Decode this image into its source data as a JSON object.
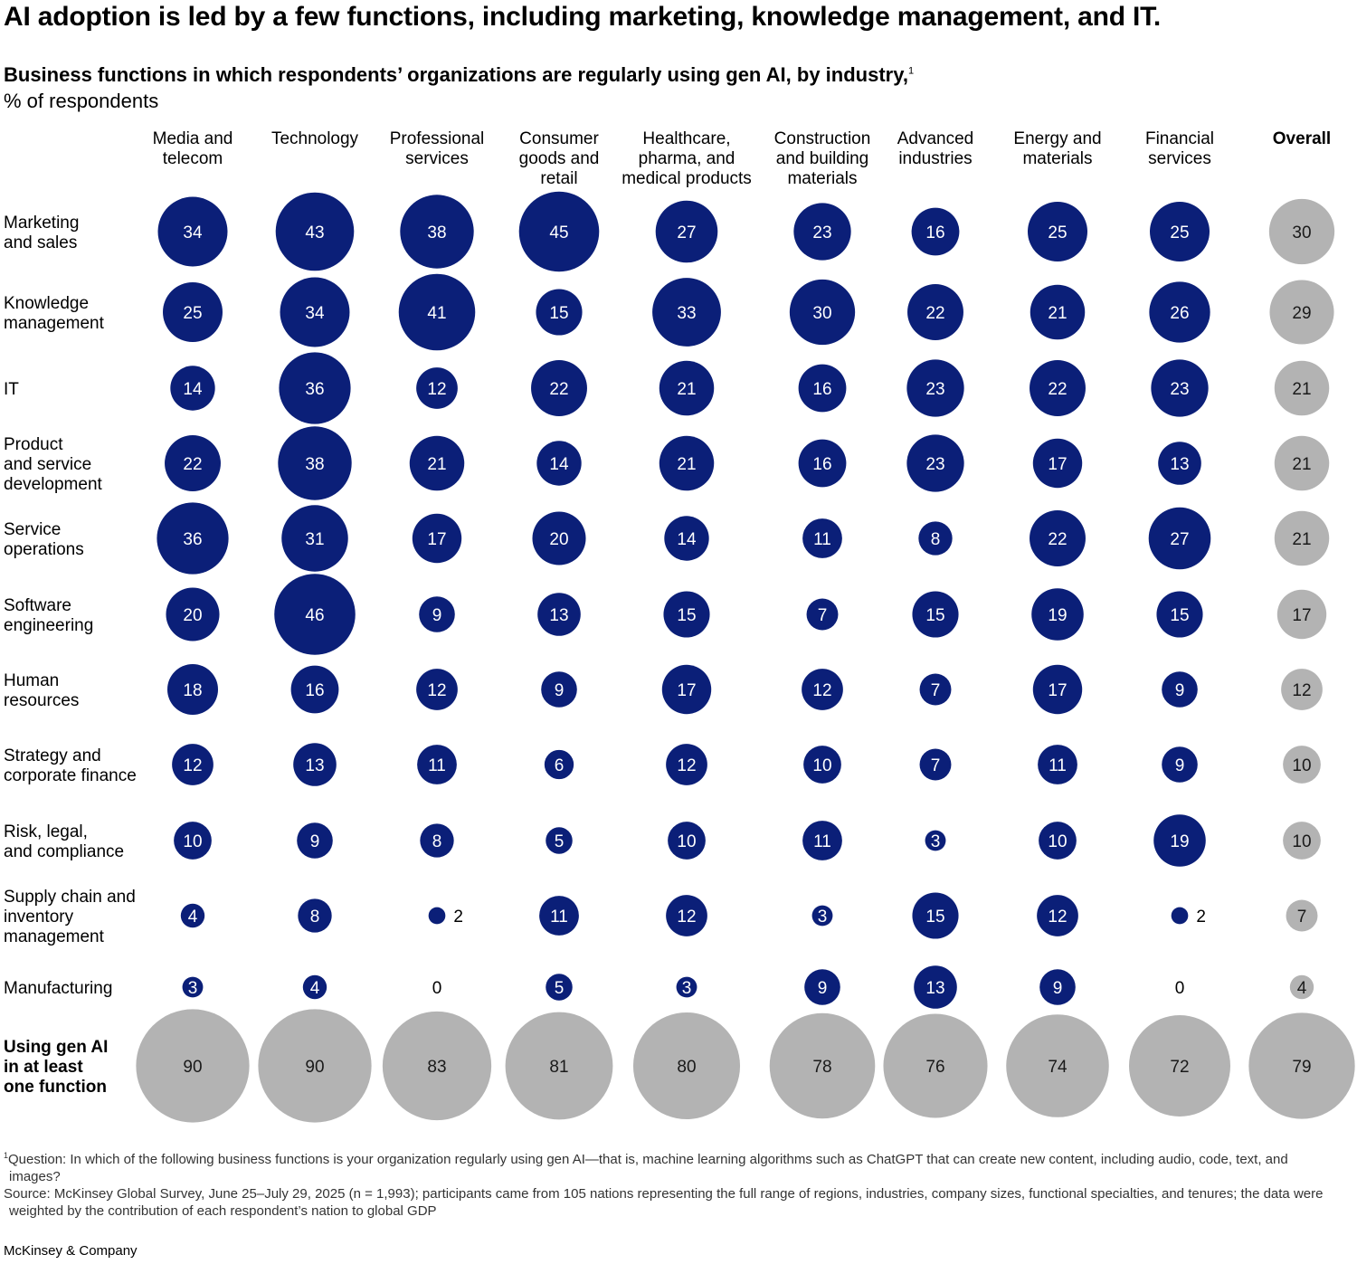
{
  "title": "AI adoption is led by a few functions, including marketing, knowledge management, and IT.",
  "subtitle": "Business functions in which respondents’ organizations are regularly using gen AI, by industry,",
  "subtitle_footnote_marker": "1",
  "unit_label": "% of respondents",
  "footnote": {
    "marker": "1",
    "question": "Question: In which of the following business functions is your organization regularly using gen AI—that is, machine learning algorithms such as ChatGPT that can create new content, including audio, code, text, and images?",
    "source": "Source: McKinsey Global Survey, June 25–July 29, 2025 (n = 1,993); participants came from 105 nations representing the full range of regions, industries, company sizes, functional specialties, and tenures; the data were weighted by the contribution of each respondent’s nation to global GDP"
  },
  "logo": "McKinsey & Company",
  "colors": {
    "industry": "#0b1f78",
    "overall": "#b3b3b3",
    "industry_text": "#ffffff",
    "overall_text": "#1a1a1a"
  },
  "chart_data": {
    "type": "bubble-matrix",
    "columns": [
      [
        "Media and",
        "telecom"
      ],
      [
        "Technology"
      ],
      [
        "Professional",
        "services"
      ],
      [
        "Consumer",
        "goods and",
        "retail"
      ],
      [
        "Healthcare,",
        "pharma, and",
        "medical products"
      ],
      [
        "Construction",
        "and building",
        "materials"
      ],
      [
        "Advanced",
        "industries"
      ],
      [
        "Energy and",
        "materials"
      ],
      [
        "Financial",
        "services"
      ],
      [
        "Overall"
      ]
    ],
    "rows": [
      {
        "label": [
          "Marketing",
          "and sales"
        ],
        "values": [
          34,
          43,
          38,
          45,
          27,
          23,
          16,
          25,
          25,
          30
        ]
      },
      {
        "label": [
          "Knowledge",
          "management"
        ],
        "values": [
          25,
          34,
          41,
          15,
          33,
          30,
          22,
          21,
          26,
          29
        ]
      },
      {
        "label": [
          "IT"
        ],
        "values": [
          14,
          36,
          12,
          22,
          21,
          16,
          23,
          22,
          23,
          21
        ]
      },
      {
        "label": [
          "Product",
          "and service",
          "development"
        ],
        "values": [
          22,
          38,
          21,
          14,
          21,
          16,
          23,
          17,
          13,
          21
        ]
      },
      {
        "label": [
          "Service",
          "operations"
        ],
        "values": [
          36,
          31,
          17,
          20,
          14,
          11,
          8,
          22,
          27,
          21
        ]
      },
      {
        "label": [
          "Software",
          "engineering"
        ],
        "values": [
          20,
          46,
          9,
          13,
          15,
          7,
          15,
          19,
          15,
          17
        ]
      },
      {
        "label": [
          "Human",
          "resources"
        ],
        "values": [
          18,
          16,
          12,
          9,
          17,
          12,
          7,
          17,
          9,
          12
        ]
      },
      {
        "label": [
          "Strategy and",
          "corporate finance"
        ],
        "values": [
          12,
          13,
          11,
          6,
          12,
          10,
          7,
          11,
          9,
          10
        ]
      },
      {
        "label": [
          "Risk, legal,",
          "and compliance"
        ],
        "values": [
          10,
          9,
          8,
          5,
          10,
          11,
          3,
          10,
          19,
          10
        ]
      },
      {
        "label": [
          "Supply chain and",
          "inventory",
          "management"
        ],
        "values": [
          4,
          8,
          2,
          11,
          12,
          3,
          15,
          12,
          2,
          7
        ]
      },
      {
        "label": [
          "Manufacturing"
        ],
        "values": [
          3,
          4,
          0,
          5,
          3,
          9,
          13,
          9,
          0,
          4
        ]
      }
    ],
    "summary_row": {
      "label": [
        "Using gen AI",
        "in at least",
        "one function"
      ],
      "values": [
        90,
        90,
        83,
        81,
        80,
        78,
        76,
        74,
        72,
        79
      ]
    }
  }
}
